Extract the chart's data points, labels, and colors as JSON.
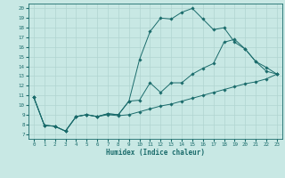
{
  "xlabel": "Humidex (Indice chaleur)",
  "xlim": [
    -0.5,
    23.5
  ],
  "ylim": [
    6.5,
    20.5
  ],
  "xticks": [
    0,
    1,
    2,
    3,
    4,
    5,
    6,
    7,
    8,
    9,
    10,
    11,
    12,
    13,
    14,
    15,
    16,
    17,
    18,
    19,
    20,
    21,
    22,
    23
  ],
  "yticks": [
    7,
    8,
    9,
    10,
    11,
    12,
    13,
    14,
    15,
    16,
    17,
    18,
    19,
    20
  ],
  "bg_color": "#c8e8e4",
  "line_color": "#1a6b6b",
  "grid_color": "#b0d4d0",
  "series": {
    "max": {
      "x": [
        0,
        1,
        2,
        3,
        4,
        5,
        6,
        7,
        8,
        9,
        10,
        11,
        12,
        13,
        14,
        15,
        16,
        17,
        18,
        19,
        20,
        21,
        22,
        23
      ],
      "y": [
        10.8,
        7.9,
        7.8,
        7.3,
        8.8,
        9.0,
        8.8,
        9.1,
        9.0,
        10.4,
        14.7,
        17.6,
        19.0,
        18.9,
        19.6,
        20.0,
        18.9,
        17.8,
        18.0,
        16.5,
        15.8,
        14.5,
        13.9,
        13.2
      ]
    },
    "mean": {
      "x": [
        0,
        1,
        2,
        3,
        4,
        5,
        6,
        7,
        8,
        9,
        10,
        11,
        12,
        13,
        14,
        15,
        16,
        17,
        18,
        19,
        20,
        21,
        22,
        23
      ],
      "y": [
        10.8,
        7.9,
        7.8,
        7.3,
        8.8,
        9.0,
        8.8,
        9.1,
        9.0,
        10.4,
        10.5,
        12.3,
        11.3,
        12.3,
        12.3,
        13.2,
        13.8,
        14.3,
        16.5,
        16.8,
        15.8,
        14.5,
        13.5,
        13.2
      ]
    },
    "min": {
      "x": [
        0,
        1,
        2,
        3,
        4,
        5,
        6,
        7,
        8,
        9,
        10,
        11,
        12,
        13,
        14,
        15,
        16,
        17,
        18,
        19,
        20,
        21,
        22,
        23
      ],
      "y": [
        10.8,
        7.9,
        7.8,
        7.3,
        8.8,
        9.0,
        8.8,
        9.0,
        8.9,
        9.0,
        9.3,
        9.6,
        9.9,
        10.1,
        10.4,
        10.7,
        11.0,
        11.3,
        11.6,
        11.9,
        12.2,
        12.4,
        12.7,
        13.2
      ]
    }
  }
}
